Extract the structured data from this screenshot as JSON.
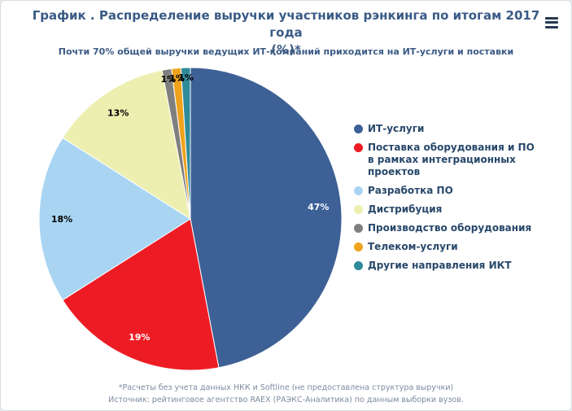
{
  "header": {
    "title_line1": "График . Распределение выручки участников рэнкинга по итогам 2017 года",
    "title_line2": "(%)*"
  },
  "icons": {
    "menu": "hamburger-menu-icon"
  },
  "subtitle": "Почти 70% общей выручки ведущих ИТ-компаний приходится на ИТ-услуги и поставки",
  "chart_data": {
    "type": "pie",
    "title": "График . Распределение выручки участников рэнкинга по итогам 2017 года (%)*",
    "subtitle": "Почти 70% общей выручки ведущих ИТ-компаний приходится на ИТ-услуги и поставки",
    "direction": "clockwise",
    "start_angle_deg": 0,
    "legend_position": "right",
    "slice_border_color": "#ffffff",
    "slices": [
      {
        "label": "ИТ-услуги",
        "value": 47,
        "data_label": "47%",
        "color": "#3d6096",
        "label_color": "#ffffff"
      },
      {
        "label": "Поставка оборудования и ПО в рамках интеграционных проектов",
        "legend_label": "Поставка оборудования и ПО\nв рамках интеграционных проектов",
        "value": 19,
        "data_label": "19%",
        "color": "#ed1c24",
        "label_color": "#ffffff"
      },
      {
        "label": "Разработка ПО",
        "value": 18,
        "data_label": "18%",
        "color": "#a9d5f3",
        "label_color": "#000000"
      },
      {
        "label": "Дистрибуция",
        "value": 13,
        "data_label": "13%",
        "color": "#edefb0",
        "label_color": "#000000"
      },
      {
        "label": "Производство оборудования",
        "value": 1,
        "data_label": "1%",
        "color": "#7f7f7f",
        "label_color": "#000000"
      },
      {
        "label": "Телеком-услуги",
        "value": 1,
        "data_label": "1%",
        "color": "#efa31d",
        "label_color": "#000000"
      },
      {
        "label": "Другие направления ИКТ",
        "value": 1,
        "data_label": "1%",
        "color": "#2f8a99",
        "label_color": "#000000"
      }
    ]
  },
  "footer": {
    "line1": "*Расчеты без учета данных НКК и Softline (не предоставлена структура выручки)",
    "line2": "Источник: рейтинговое агентство RAEX (РАЭКС-Аналитика) по данным выборки вузов."
  },
  "colors": {
    "title": "#3a5a85",
    "legend_text": "#28486a",
    "footer_text": "#7d8ba0",
    "background": "#ffffff"
  }
}
